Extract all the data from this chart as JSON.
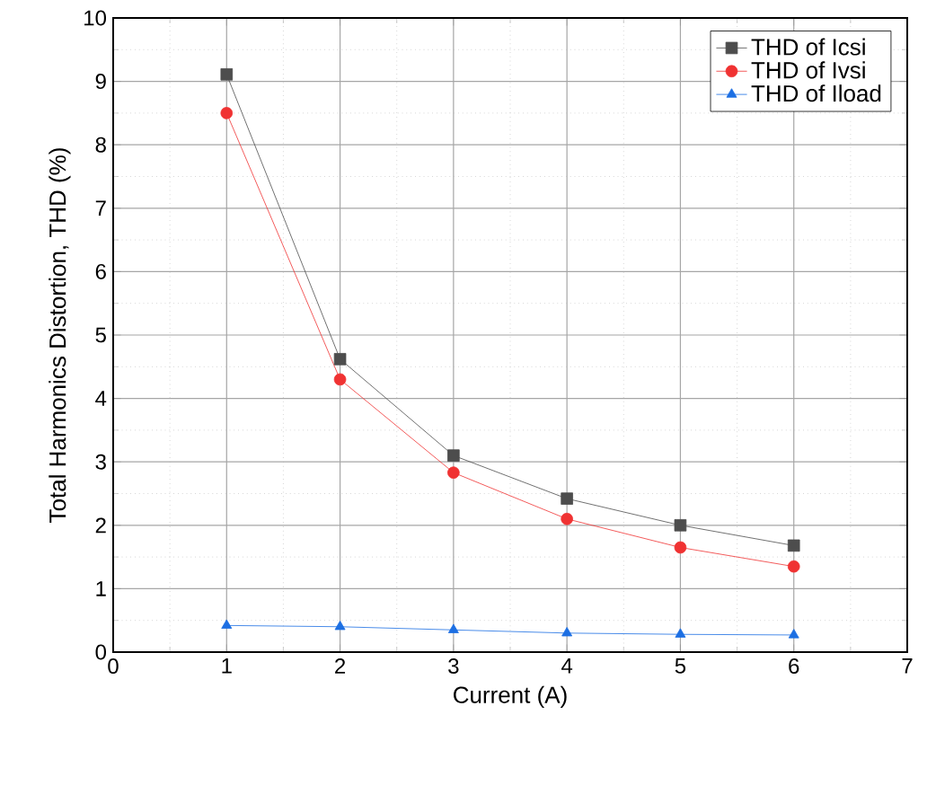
{
  "chart_data": {
    "type": "line",
    "xlabel": "Current (A)",
    "ylabel": "Total Harmonics Distortion, THD (%)",
    "x": [
      1,
      2,
      3,
      4,
      5,
      6
    ],
    "series": [
      {
        "name": "THD of Icsi",
        "color": "#4d4d4d",
        "marker": "square",
        "values": [
          9.11,
          4.62,
          3.1,
          2.42,
          2.0,
          1.68
        ]
      },
      {
        "name": "THD of Ivsi",
        "color": "#f03232",
        "marker": "circle",
        "values": [
          8.5,
          4.3,
          2.83,
          2.1,
          1.65,
          1.35
        ]
      },
      {
        "name": "THD of Iload",
        "color": "#1c6fe3",
        "marker": "triangle",
        "values": [
          0.42,
          0.4,
          0.35,
          0.3,
          0.28,
          0.27
        ]
      }
    ],
    "xlim": [
      0,
      7
    ],
    "xticks": [
      0,
      1,
      2,
      3,
      4,
      5,
      6,
      7
    ],
    "ylim": [
      0,
      10
    ],
    "yticks": [
      0,
      1,
      2,
      3,
      4,
      5,
      6,
      7,
      8,
      9,
      10
    ],
    "grid": true,
    "legend": "top right",
    "line_style": "solid"
  }
}
